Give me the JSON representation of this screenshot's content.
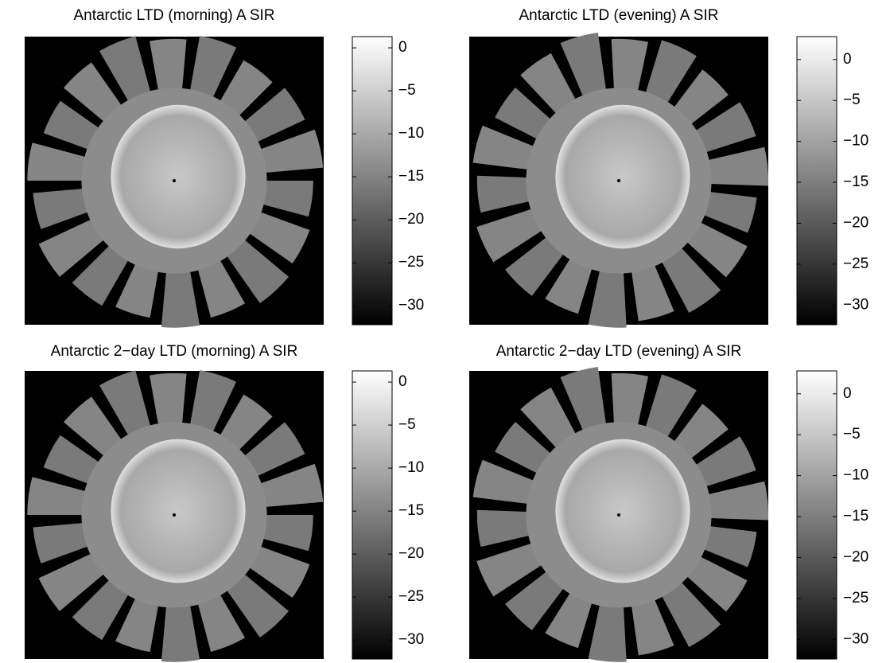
{
  "chart_data": [
    {
      "type": "heatmap",
      "title": "Antarctic LTD (morning) A SIR",
      "clim": [
        -32.2,
        1.3
      ],
      "cticks": [
        {
          "value": 0,
          "label": "0"
        },
        {
          "value": -5,
          "label": "−5"
        },
        {
          "value": -10,
          "label": "−10"
        },
        {
          "value": -15,
          "label": "−15"
        },
        {
          "value": -20,
          "label": "−20"
        },
        {
          "value": -25,
          "label": "−25"
        },
        {
          "value": -30,
          "label": "−30"
        }
      ]
    },
    {
      "type": "heatmap",
      "title": "Antarctic LTD (evening) A SIR",
      "clim": [
        -32.4,
        2.8
      ],
      "cticks": [
        {
          "value": 0,
          "label": "0"
        },
        {
          "value": -5,
          "label": "−5"
        },
        {
          "value": -10,
          "label": "−10"
        },
        {
          "value": -15,
          "label": "−15"
        },
        {
          "value": -20,
          "label": "−20"
        },
        {
          "value": -25,
          "label": "−25"
        },
        {
          "value": -30,
          "label": "−30"
        }
      ]
    },
    {
      "type": "heatmap",
      "title": "Antarctic 2−day LTD (morning) A SIR",
      "clim": [
        -32.2,
        1.3
      ],
      "cticks": [
        {
          "value": 0,
          "label": "0"
        },
        {
          "value": -5,
          "label": "−5"
        },
        {
          "value": -10,
          "label": "−10"
        },
        {
          "value": -15,
          "label": "−15"
        },
        {
          "value": -20,
          "label": "−20"
        },
        {
          "value": -25,
          "label": "−25"
        },
        {
          "value": -30,
          "label": "−30"
        }
      ]
    },
    {
      "type": "heatmap",
      "title": "Antarctic 2−day LTD (evening) A SIR",
      "clim": [
        -32.4,
        2.8
      ],
      "cticks": [
        {
          "value": 0,
          "label": "0"
        },
        {
          "value": -5,
          "label": "−5"
        },
        {
          "value": -10,
          "label": "−10"
        },
        {
          "value": -15,
          "label": "−15"
        },
        {
          "value": -20,
          "label": "−20"
        },
        {
          "value": -25,
          "label": "−25"
        },
        {
          "value": -30,
          "label": "−30"
        }
      ]
    }
  ]
}
